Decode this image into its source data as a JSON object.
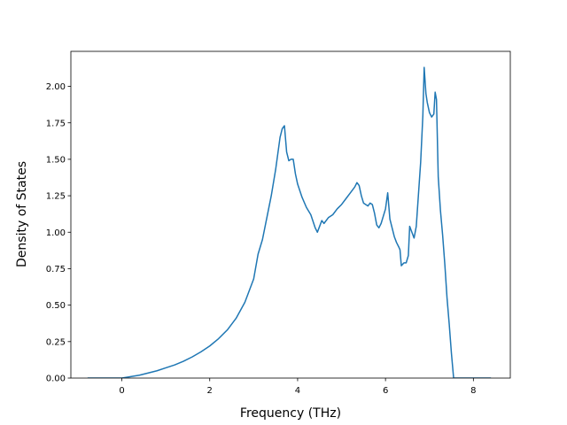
{
  "chart_data": {
    "type": "line",
    "title": "",
    "xlabel": "Frequency (THz)",
    "ylabel": "Density of States",
    "xlim": [
      -1.16,
      8.84
    ],
    "ylim": [
      0,
      2.24
    ],
    "xticks": [
      0,
      2,
      4,
      6,
      8
    ],
    "xtick_labels": [
      "0",
      "2",
      "4",
      "6",
      "8"
    ],
    "yticks": [
      0,
      0.25,
      0.5,
      0.75,
      1.0,
      1.25,
      1.5,
      1.75,
      2.0
    ],
    "ytick_labels": [
      "0.00",
      "0.25",
      "0.50",
      "0.75",
      "1.00",
      "1.25",
      "1.50",
      "1.75",
      "2.00"
    ],
    "grid": false,
    "line_color": "#1f77b4",
    "series": [
      {
        "x": [
          -0.78,
          -0.4,
          0.0,
          0.2,
          0.4,
          0.6,
          0.8,
          1.0,
          1.2,
          1.4,
          1.6,
          1.8,
          2.0,
          2.2,
          2.4,
          2.6,
          2.8,
          3.0,
          3.1,
          3.2,
          3.3,
          3.4,
          3.5,
          3.6,
          3.65,
          3.7,
          3.75,
          3.8,
          3.85,
          3.9,
          3.95,
          4.0,
          4.1,
          4.2,
          4.3,
          4.4,
          4.45,
          4.5,
          4.55,
          4.6,
          4.7,
          4.8,
          4.9,
          5.0,
          5.1,
          5.2,
          5.3,
          5.35,
          5.4,
          5.45,
          5.5,
          5.6,
          5.65,
          5.7,
          5.75,
          5.8,
          5.85,
          5.9,
          6.0,
          6.05,
          6.1,
          6.2,
          6.25,
          6.3,
          6.33,
          6.36,
          6.42,
          6.47,
          6.52,
          6.55,
          6.6,
          6.65,
          6.7,
          6.8,
          6.85,
          6.88,
          6.92,
          6.95,
          7.0,
          7.05,
          7.1,
          7.13,
          7.16,
          7.2,
          7.25,
          7.3,
          7.35,
          7.4,
          7.45,
          7.5,
          7.55,
          7.6,
          7.65,
          7.8,
          8.0,
          8.4
        ],
        "y": [
          0.0,
          0.0,
          0.0,
          0.01,
          0.02,
          0.035,
          0.05,
          0.07,
          0.09,
          0.115,
          0.145,
          0.18,
          0.22,
          0.27,
          0.33,
          0.41,
          0.52,
          0.68,
          0.85,
          0.95,
          1.1,
          1.25,
          1.43,
          1.65,
          1.71,
          1.73,
          1.55,
          1.49,
          1.5,
          1.5,
          1.4,
          1.33,
          1.24,
          1.17,
          1.12,
          1.03,
          1.0,
          1.04,
          1.08,
          1.06,
          1.1,
          1.12,
          1.16,
          1.19,
          1.23,
          1.27,
          1.31,
          1.34,
          1.32,
          1.25,
          1.2,
          1.18,
          1.2,
          1.19,
          1.13,
          1.05,
          1.03,
          1.06,
          1.16,
          1.27,
          1.09,
          0.97,
          0.93,
          0.9,
          0.88,
          0.77,
          0.79,
          0.79,
          0.84,
          1.04,
          1.0,
          0.96,
          1.04,
          1.48,
          1.8,
          2.13,
          1.95,
          1.89,
          1.82,
          1.79,
          1.81,
          1.96,
          1.91,
          1.38,
          1.15,
          0.98,
          0.78,
          0.55,
          0.37,
          0.17,
          0.0,
          0.0,
          0.0,
          0.0,
          0.0,
          0.0
        ]
      }
    ]
  }
}
